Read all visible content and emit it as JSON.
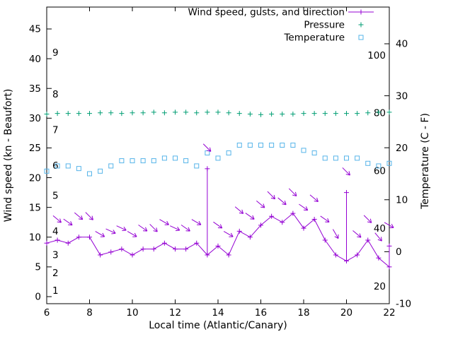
{
  "chart_data": {
    "type": "line",
    "title": "",
    "xlabel": "Local time (Atlantic/Canary)",
    "ylabel": "Wind speed (kn - Beaufort)",
    "y2label": "Temperature (C - F)",
    "legend_position": "top-right-inside",
    "grid": false,
    "x_range": [
      6,
      22
    ],
    "y_left_range": [
      0,
      45
    ],
    "y_right_range": [
      -10,
      40
    ],
    "x_ticks": [
      6,
      8,
      10,
      12,
      14,
      16,
      18,
      20,
      22
    ],
    "y_left_ticks": [
      0,
      5,
      10,
      15,
      20,
      25,
      30,
      35,
      40,
      45
    ],
    "y_right_ticks": [
      -10,
      0,
      10,
      20,
      30,
      40
    ],
    "beaufort_scale_labels": [
      [
        "1",
        1
      ],
      [
        "2",
        4
      ],
      [
        "3",
        7
      ],
      [
        "4",
        11
      ],
      [
        "5",
        17
      ],
      [
        "6",
        22
      ],
      [
        "7",
        28
      ],
      [
        "8",
        34
      ],
      [
        "9",
        41
      ]
    ],
    "fahrenheit_scale_labels": [
      20,
      40,
      60,
      80,
      100
    ],
    "x": [
      6,
      6.5,
      7,
      7.5,
      8,
      8.5,
      9,
      9.5,
      10,
      10.5,
      11,
      11.5,
      12,
      12.5,
      13,
      13.5,
      14,
      14.5,
      15,
      15.5,
      16,
      16.5,
      17,
      17.5,
      18,
      18.5,
      19,
      19.5,
      20,
      20.5,
      21,
      21.5,
      22
    ],
    "series": [
      {
        "name": "Wind speed, gusts, and direction",
        "color": "#9400d3",
        "axis": "left",
        "marker": "plus",
        "line": true,
        "values": [
          9,
          9.5,
          9,
          10,
          10,
          7,
          7.5,
          8,
          7,
          8,
          8,
          9,
          8,
          8,
          9,
          7,
          8.5,
          7,
          11,
          10,
          12,
          13.5,
          12.5,
          14,
          11.5,
          13,
          9.5,
          7,
          6,
          7,
          9.5,
          6.5,
          5
        ],
        "gusts": [
          9,
          9.5,
          9,
          10,
          10,
          7,
          7.5,
          8,
          7,
          8,
          8,
          9,
          8,
          8,
          9,
          21.5,
          8.5,
          7,
          11,
          10,
          12,
          13.5,
          12.5,
          14,
          11.5,
          13,
          9.5,
          7,
          17.5,
          7,
          9.5,
          6.5,
          8.5
        ],
        "arrow_rot_deg": [
          null,
          40,
          35,
          40,
          45,
          30,
          25,
          25,
          30,
          35,
          45,
          30,
          25,
          35,
          30,
          45,
          35,
          30,
          40,
          35,
          40,
          45,
          40,
          45,
          35,
          40,
          35,
          60,
          45,
          40,
          45,
          50,
          30
        ]
      },
      {
        "name": "Pressure",
        "color": "#009e73",
        "axis": "left",
        "marker": "plus",
        "line": false,
        "values": [
          30.7,
          30.8,
          30.8,
          30.8,
          30.8,
          30.9,
          30.9,
          30.8,
          30.9,
          30.9,
          31,
          30.9,
          31,
          31,
          30.9,
          31,
          31,
          30.9,
          30.8,
          30.7,
          30.6,
          30.7,
          30.7,
          30.7,
          30.8,
          30.8,
          30.8,
          30.8,
          30.8,
          30.8,
          30.9,
          31,
          31
        ]
      },
      {
        "name": "Temperature",
        "color": "#56b4e9",
        "axis": "right",
        "marker": "square",
        "line": false,
        "values": [
          15.5,
          16.5,
          16.5,
          16,
          15,
          15.5,
          16.5,
          17.5,
          17.5,
          17.5,
          17.5,
          18,
          18,
          17.5,
          16.5,
          19,
          18,
          19,
          20.5,
          20.5,
          20.5,
          20.5,
          20.5,
          20.5,
          19.5,
          19,
          18,
          18,
          18,
          18,
          17,
          16.5,
          17
        ]
      }
    ]
  }
}
